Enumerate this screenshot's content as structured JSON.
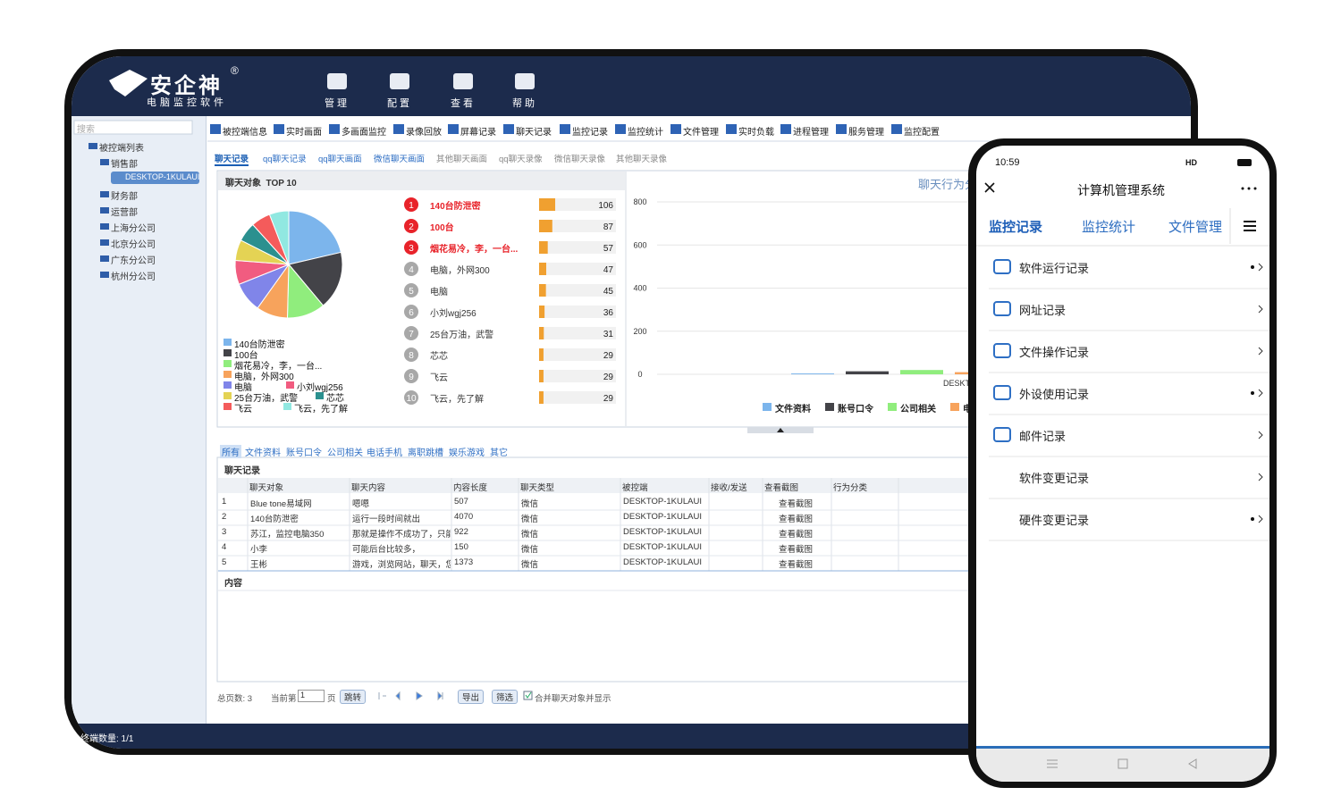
{
  "header": {
    "brand": "安企神",
    "registered": "®",
    "subtitle": "电脑监控软件",
    "nav": [
      "管理",
      "配置",
      "查看",
      "帮助"
    ]
  },
  "sidebar": {
    "search": "搜索",
    "root": "被控端列表",
    "groups": [
      "销售部",
      "财务部",
      "运营部",
      "上海分公司",
      "北京分公司",
      "广东分公司",
      "杭州分公司"
    ],
    "device": "DESKTOP-1KULAUI"
  },
  "toolbar": [
    "被控端信息",
    "实时画面",
    "多画面监控",
    "录像回放",
    "屏幕记录",
    "聊天记录",
    "监控记录",
    "监控统计",
    "文件管理",
    "实时负载",
    "进程管理",
    "服务管理",
    "监控配置"
  ],
  "tabs": [
    "聊天记录",
    "qq聊天记录",
    "qq聊天画面",
    "微信聊天画面",
    "其他聊天画面",
    "qq聊天录像",
    "微信聊天录像",
    "其他聊天录像"
  ],
  "top_panel_title": "聊天对象  TOP 10",
  "chart_data": [
    {
      "type": "pie",
      "ranks": [
        1,
        2,
        3,
        4,
        5,
        6,
        7,
        8,
        9,
        10
      ],
      "categories": [
        "140台防泄密",
        "100台",
        "烟花易冷，李，一台...",
        "电脑，外网300",
        "电脑",
        "小刘wgj256",
        "25台万油，武警",
        "芯芯",
        "飞云",
        "飞云，先了解"
      ],
      "values": [
        106,
        87,
        57,
        47,
        45,
        36,
        31,
        29,
        29,
        29
      ],
      "colors": [
        "#7cb5ec",
        "#434348",
        "#90ed7d",
        "#f7a35c",
        "#8085e9",
        "#f15c80",
        "#e4d354",
        "#2b908f",
        "#f45b5b",
        "#91e8e1"
      ],
      "bar_color": "#f0a030"
    },
    {
      "type": "bar",
      "title": "聊天行为分类统计",
      "categories": [
        "DESKTOP-1KULAUI"
      ],
      "ylim": [
        0,
        800
      ],
      "yticks": [
        0,
        200,
        400,
        600,
        800
      ],
      "grid": true,
      "series": [
        {
          "name": "文件资料",
          "color": "#7cb5ec",
          "values": [
            4
          ]
        },
        {
          "name": "账号口令",
          "color": "#434348",
          "values": [
            14
          ]
        },
        {
          "name": "公司相关",
          "color": "#90ed7d",
          "values": [
            20
          ]
        },
        {
          "name": "电话手机",
          "color": "#f7a35c",
          "values": [
            10
          ]
        }
      ]
    }
  ],
  "filters": [
    "所有",
    "文件资料",
    "账号口令",
    "公司相关",
    "电话手机",
    "离职跳槽",
    "娱乐游戏",
    "其它"
  ],
  "records": {
    "title": "聊天记录",
    "columns": [
      "聊天对象",
      "聊天内容",
      "内容长度",
      "聊天类型",
      "被控端",
      "接收/发送",
      "查看截图",
      "行为分类"
    ],
    "rows": [
      [
        "1",
        "Blue tone易域网",
        "嗯嗯",
        "507",
        "微信",
        "DESKTOP-1KULAUI",
        "",
        "查看截图",
        ""
      ],
      [
        "2",
        "140台防泄密",
        "运行一段时间就出",
        "4070",
        "微信",
        "DESKTOP-1KULAUI",
        "",
        "查看截图",
        ""
      ],
      [
        "3",
        "苏江，监控电脑350",
        "那就是操作不成功了，只能",
        "922",
        "微信",
        "DESKTOP-1KULAUI",
        "",
        "查看截图",
        ""
      ],
      [
        "4",
        "小李",
        "可能后台比较多，",
        "150",
        "微信",
        "DESKTOP-1KULAUI",
        "",
        "查看截图",
        ""
      ],
      [
        "5",
        "王彬",
        "游戏，浏览网站，聊天，您",
        "1373",
        "微信",
        "DESKTOP-1KULAUI",
        "",
        "查看截图",
        ""
      ]
    ]
  },
  "content_title": "内容",
  "pager": {
    "total": "总页数: 3",
    "current_prefix": "当前第",
    "current": "1",
    "current_suffix": "页",
    "jump": "跳转",
    "export": "导出",
    "filter": "筛选",
    "merge": "合并聊天对象并显示"
  },
  "status": "终端数量: 1/1",
  "phone": {
    "time": "10:59",
    "signal": "HD",
    "title": "计算机管理系统",
    "tabs": [
      "监控记录",
      "监控统计",
      "文件管理"
    ],
    "items": [
      "软件运行记录",
      "网址记录",
      "文件操作记录",
      "外设使用记录",
      "邮件记录",
      "软件变更记录",
      "硬件变更记录"
    ]
  }
}
